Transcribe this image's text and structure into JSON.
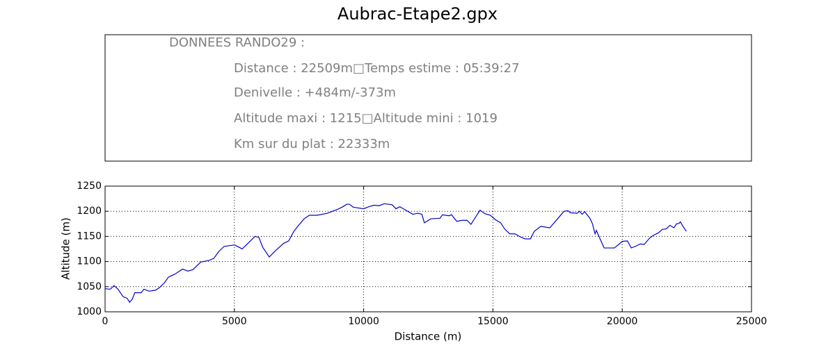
{
  "chart_data": {
    "type": "line",
    "title": "Aubrac-Etape2.gpx",
    "info_box": {
      "lines": [
        "DONNEES RANDO29  :",
        "Distance : 22509m□Temps estime : 05:39:27",
        "Denivelle : +484m/-373m",
        "Altitude maxi : 1215□Altitude mini : 1019",
        "Km sur du plat : 22333m"
      ]
    },
    "x_label": "Distance (m)",
    "y_label": "Altitude (m)",
    "xlim": [
      0,
      25000
    ],
    "ylim": [
      1000,
      1250
    ],
    "xticks": [
      0,
      5000,
      10000,
      15000,
      20000,
      25000
    ],
    "yticks": [
      1000,
      1050,
      1100,
      1150,
      1200,
      1250
    ],
    "grid": true,
    "color": "#0000cc",
    "x": [
      0,
      200,
      350,
      500,
      700,
      850,
      950,
      1050,
      1150,
      1400,
      1500,
      1700,
      1950,
      2100,
      2300,
      2450,
      2700,
      3000,
      3200,
      3400,
      3700,
      4000,
      4200,
      4400,
      4600,
      5000,
      5200,
      5300,
      5500,
      5800,
      5950,
      6100,
      6300,
      6350,
      6600,
      6900,
      7100,
      7300,
      7500,
      7700,
      7900,
      8200,
      8600,
      9000,
      9200,
      9350,
      9450,
      9600,
      10000,
      10200,
      10400,
      10600,
      10800,
      11100,
      11250,
      11400,
      11600,
      11900,
      12100,
      12250,
      12350,
      12600,
      12950,
      13050,
      13300,
      13400,
      13600,
      13800,
      14000,
      14150,
      14300,
      14500,
      14700,
      14900,
      15100,
      15300,
      15450,
      15650,
      15850,
      16100,
      16250,
      16450,
      16600,
      16850,
      17200,
      17500,
      17750,
      17900,
      18000,
      18250,
      18350,
      18450,
      18550,
      18750,
      18850,
      18950,
      19000,
      19100,
      19300,
      19700,
      20000,
      20200,
      20350,
      20500,
      20700,
      20850,
      21050,
      21200,
      21400,
      21550,
      21700,
      21850,
      22000,
      22100,
      22200,
      22250,
      22350,
      22480
    ],
    "values": [
      1046,
      1045,
      1052,
      1045,
      1030,
      1027,
      1019,
      1025,
      1038,
      1038,
      1045,
      1041,
      1043,
      1048,
      1058,
      1069,
      1075,
      1085,
      1081,
      1084,
      1099,
      1102,
      1106,
      1120,
      1130,
      1133,
      1128,
      1125,
      1135,
      1150,
      1148,
      1128,
      1113,
      1109,
      1122,
      1136,
      1141,
      1160,
      1173,
      1185,
      1192,
      1192,
      1196,
      1204,
      1209,
      1214,
      1214,
      1208,
      1205,
      1209,
      1212,
      1211,
      1215,
      1213,
      1205,
      1209,
      1203,
      1194,
      1196,
      1194,
      1177,
      1185,
      1186,
      1193,
      1191,
      1193,
      1180,
      1182,
      1182,
      1174,
      1186,
      1202,
      1195,
      1192,
      1183,
      1177,
      1165,
      1155,
      1155,
      1148,
      1145,
      1145,
      1160,
      1170,
      1167,
      1185,
      1200,
      1201,
      1197,
      1196,
      1200,
      1194,
      1199,
      1186,
      1175,
      1155,
      1162,
      1150,
      1127,
      1127,
      1140,
      1141,
      1127,
      1130,
      1135,
      1134,
      1146,
      1152,
      1157,
      1164,
      1165,
      1172,
      1167,
      1175,
      1176,
      1179,
      1170,
      1160
    ]
  }
}
